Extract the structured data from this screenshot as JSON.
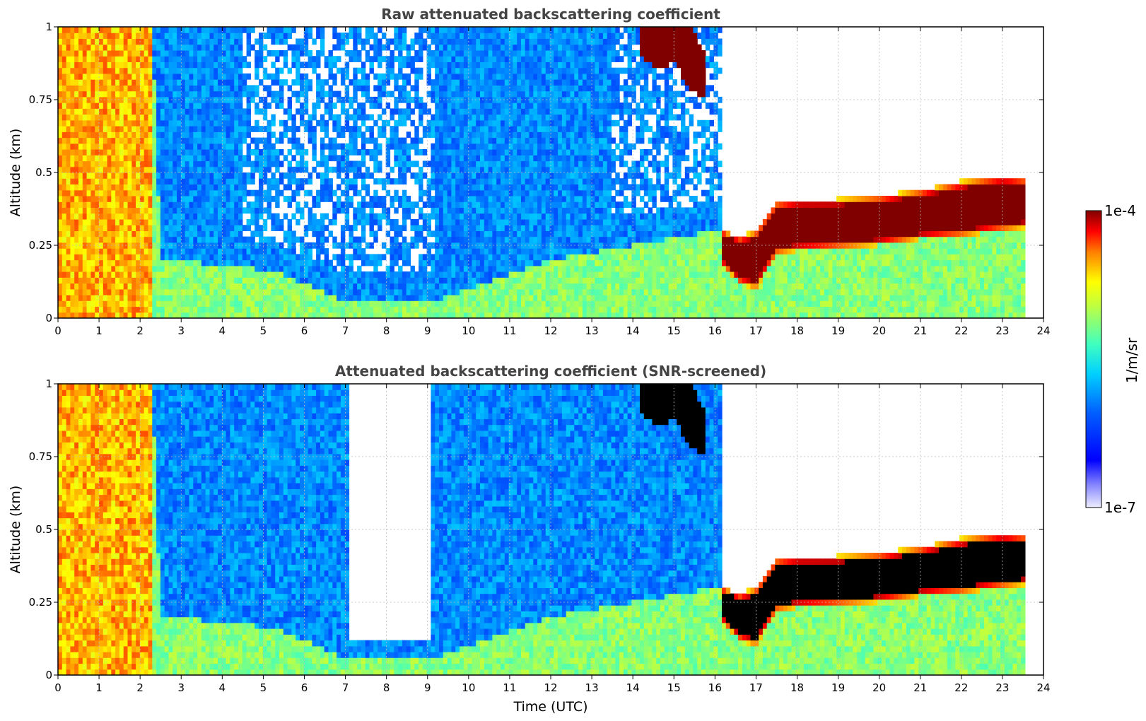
{
  "chart_data": [
    {
      "type": "heatmap",
      "title": "Raw attenuated backscattering coefficient",
      "xlabel": "",
      "ylabel": "Altitude (km)",
      "xlim": [
        0,
        24
      ],
      "ylim": [
        0,
        1
      ],
      "xticks": [
        0,
        1,
        2,
        3,
        4,
        5,
        6,
        7,
        8,
        9,
        10,
        11,
        12,
        13,
        14,
        15,
        16,
        17,
        18,
        19,
        20,
        21,
        22,
        23,
        24
      ],
      "xtick_labels": [
        "0",
        "1",
        "2",
        "3",
        "4",
        "5",
        "6",
        "7",
        "8",
        "9",
        "10",
        "11",
        "12",
        "13",
        "14",
        "15",
        "16",
        "17",
        "18",
        "19",
        "20",
        "21",
        "22",
        "23",
        "24"
      ],
      "yticks": [
        0,
        0.25,
        0.5,
        0.75,
        1
      ],
      "ytick_labels": [
        "0",
        "0.25",
        "0.5",
        "0.75",
        "1"
      ],
      "grid": true,
      "data_end_time": 23.55,
      "features": {
        "surface_aerosol_top_km": [
          [
            0,
            1.0
          ],
          [
            2.3,
            1.0
          ],
          [
            2.5,
            0.2
          ],
          [
            4.5,
            0.18
          ],
          [
            5.5,
            0.15
          ],
          [
            7,
            0.06
          ],
          [
            9,
            0.05
          ],
          [
            12,
            0.2
          ],
          [
            16,
            0.3
          ]
        ],
        "noise_region_hours": [
          [
            4.5,
            9.2
          ],
          [
            13.5,
            16.2
          ]
        ],
        "cloud_layer": {
          "x": [
            16.2,
            16.6,
            17.0,
            17.5,
            18,
            19,
            20,
            21,
            22,
            23,
            23.55
          ],
          "base_km": [
            0.18,
            0.12,
            0.1,
            0.22,
            0.23,
            0.24,
            0.25,
            0.27,
            0.28,
            0.3,
            0.31
          ],
          "top_km": [
            0.3,
            0.28,
            0.3,
            0.4,
            0.41,
            0.41,
            0.42,
            0.44,
            0.47,
            0.49,
            0.48
          ]
        },
        "upper_cloud": {
          "x": [
            14.2,
            14.6,
            15.0,
            15.4,
            15.8
          ],
          "base_km": [
            0.9,
            0.85,
            0.88,
            0.78,
            0.75
          ],
          "top_km": [
            1,
            1,
            1,
            1,
            0.9
          ]
        }
      },
      "screened": false
    },
    {
      "type": "heatmap",
      "title": "Attenuated backscattering coefficient (SNR-screened)",
      "xlabel": "Time (UTC)",
      "ylabel": "Altitude (km)",
      "xlim": [
        0,
        24
      ],
      "ylim": [
        0,
        1
      ],
      "xticks": [
        0,
        1,
        2,
        3,
        4,
        5,
        6,
        7,
        8,
        9,
        10,
        11,
        12,
        13,
        14,
        15,
        16,
        17,
        18,
        19,
        20,
        21,
        22,
        23,
        24
      ],
      "xtick_labels": [
        "0",
        "1",
        "2",
        "3",
        "4",
        "5",
        "6",
        "7",
        "8",
        "9",
        "10",
        "11",
        "12",
        "13",
        "14",
        "15",
        "16",
        "17",
        "18",
        "19",
        "20",
        "21",
        "22",
        "23",
        "24"
      ],
      "yticks": [
        0,
        0.25,
        0.5,
        0.75,
        1
      ],
      "ytick_labels": [
        "0",
        "0.25",
        "0.5",
        "0.75",
        "1"
      ],
      "grid": true,
      "data_end_time": 23.55,
      "features": {
        "surface_aerosol_top_km": [
          [
            0,
            1.0
          ],
          [
            2.3,
            1.0
          ],
          [
            2.5,
            0.2
          ],
          [
            4.5,
            0.18
          ],
          [
            5.5,
            0.15
          ],
          [
            7,
            0.06
          ],
          [
            9,
            0.05
          ],
          [
            12,
            0.2
          ],
          [
            16,
            0.3
          ]
        ],
        "cleared_region_hours": [
          [
            7.1,
            9.1
          ]
        ],
        "cloud_layer": {
          "x": [
            16.2,
            16.6,
            17.0,
            17.5,
            18,
            19,
            20,
            21,
            22,
            23,
            23.55
          ],
          "base_km": [
            0.18,
            0.12,
            0.1,
            0.22,
            0.23,
            0.24,
            0.25,
            0.27,
            0.28,
            0.3,
            0.31
          ],
          "top_km": [
            0.3,
            0.28,
            0.3,
            0.4,
            0.41,
            0.41,
            0.42,
            0.44,
            0.47,
            0.49,
            0.48
          ]
        },
        "upper_cloud": {
          "x": [
            14.2,
            14.6,
            15.0,
            15.4,
            15.8
          ],
          "base_km": [
            0.9,
            0.85,
            0.88,
            0.78,
            0.75
          ],
          "top_km": [
            1,
            1,
            1,
            1,
            0.9
          ]
        }
      },
      "screened": true
    }
  ],
  "colorbar": {
    "label": "1/m/sr",
    "max_label": "1e-4",
    "min_label": "1e-7",
    "min_value": 1e-07,
    "max_value": 0.0001,
    "scale": "log",
    "colormap": "jet"
  },
  "colors": {
    "saturated_raw": "#800000",
    "saturated_screened": "#000000",
    "grid": "#bbbbbb",
    "title": "#444444"
  }
}
